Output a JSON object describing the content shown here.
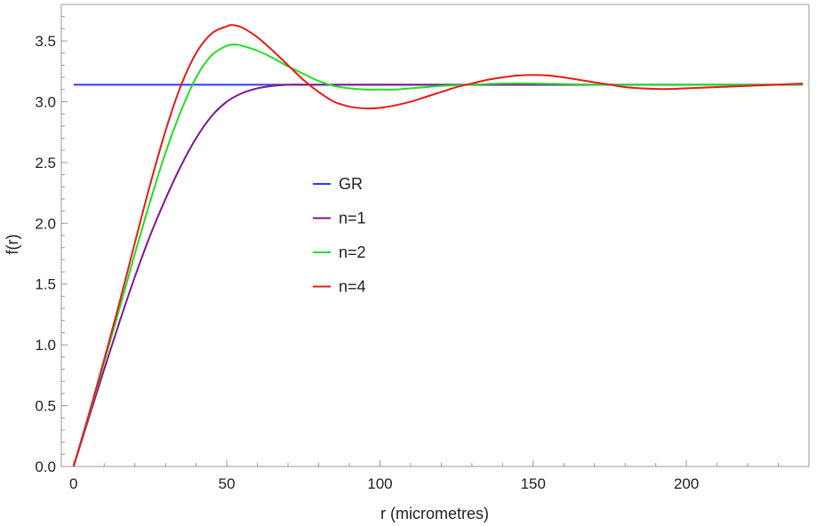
{
  "chart_data": {
    "type": "line",
    "xlabel": "r (micrometres)",
    "ylabel": "f(r)",
    "xlim": [
      -4,
      240
    ],
    "ylim": [
      0,
      3.8
    ],
    "x_ticks": [
      0,
      50,
      100,
      150,
      200
    ],
    "y_ticks": [
      0.0,
      0.5,
      1.0,
      1.5,
      2.0,
      2.5,
      3.0,
      3.5
    ],
    "x_tick_labels": [
      "0",
      "50",
      "100",
      "150",
      "200"
    ],
    "y_tick_labels": [
      "0.0",
      "0.5",
      "1.0",
      "1.5",
      "2.0",
      "2.5",
      "3.0",
      "3.5"
    ],
    "grid": false,
    "legend_position": "center",
    "series": [
      {
        "name": "GR",
        "color": "#2a3ff0",
        "x": [
          0,
          238
        ],
        "y": [
          3.14,
          3.14
        ]
      },
      {
        "name": "n=1",
        "color": "#7a1a8c",
        "x": [
          0,
          5,
          10,
          15,
          20,
          25,
          30,
          35,
          40,
          45,
          50,
          55,
          60,
          65,
          70,
          75,
          80,
          90,
          100,
          120,
          150,
          200,
          238
        ],
        "y": [
          0.0,
          0.4,
          0.8,
          1.19,
          1.56,
          1.9,
          2.2,
          2.47,
          2.7,
          2.88,
          3.0,
          3.07,
          3.11,
          3.13,
          3.14,
          3.14,
          3.14,
          3.14,
          3.14,
          3.14,
          3.14,
          3.14,
          3.14
        ]
      },
      {
        "name": "n=2",
        "color": "#1fe01f",
        "x": [
          0,
          5,
          10,
          15,
          20,
          25,
          30,
          35,
          40,
          45,
          50,
          53,
          55,
          60,
          65,
          70,
          75,
          80,
          85,
          90,
          95,
          100,
          105,
          110,
          115,
          120,
          130,
          140,
          150,
          160,
          170,
          180,
          200,
          238
        ],
        "y": [
          0.0,
          0.42,
          0.86,
          1.3,
          1.75,
          2.18,
          2.58,
          2.92,
          3.2,
          3.38,
          3.46,
          3.47,
          3.46,
          3.42,
          3.36,
          3.29,
          3.23,
          3.17,
          3.13,
          3.11,
          3.1,
          3.1,
          3.1,
          3.11,
          3.12,
          3.13,
          3.14,
          3.15,
          3.15,
          3.145,
          3.14,
          3.14,
          3.14,
          3.14
        ]
      },
      {
        "name": "n=4",
        "color": "#e81a1a",
        "x": [
          0,
          5,
          10,
          15,
          20,
          25,
          30,
          35,
          40,
          45,
          50,
          52,
          55,
          60,
          65,
          70,
          75,
          80,
          85,
          90,
          95,
          100,
          105,
          110,
          115,
          120,
          125,
          130,
          135,
          140,
          145,
          150,
          155,
          160,
          165,
          170,
          175,
          180,
          185,
          190,
          195,
          200,
          205,
          210,
          215,
          220,
          225,
          230,
          238
        ],
        "y": [
          0.0,
          0.43,
          0.88,
          1.35,
          1.84,
          2.32,
          2.76,
          3.13,
          3.4,
          3.56,
          3.62,
          3.63,
          3.61,
          3.53,
          3.42,
          3.3,
          3.18,
          3.08,
          3.0,
          2.96,
          2.945,
          2.95,
          2.97,
          3.0,
          3.04,
          3.08,
          3.12,
          3.15,
          3.18,
          3.2,
          3.215,
          3.22,
          3.215,
          3.2,
          3.18,
          3.16,
          3.14,
          3.12,
          3.11,
          3.105,
          3.105,
          3.11,
          3.115,
          3.12,
          3.125,
          3.13,
          3.135,
          3.14,
          3.15
        ]
      }
    ]
  }
}
